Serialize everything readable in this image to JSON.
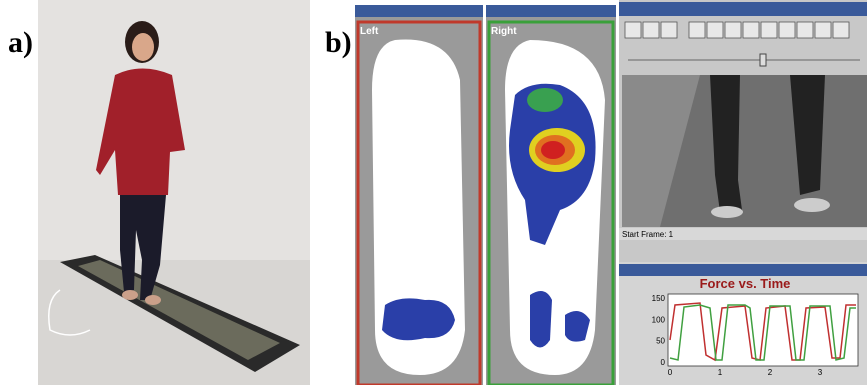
{
  "labels": {
    "a": "a)",
    "b": "b)"
  },
  "windows": {
    "left": {
      "title": "Left"
    },
    "right": {
      "title": "Right"
    },
    "video": {
      "status": "Start Frame: 1"
    },
    "graph": {
      "title": "Force vs. Time",
      "yticks": [
        150,
        100,
        50,
        0
      ],
      "xticks": [
        0,
        1,
        2,
        3
      ]
    }
  }
}
